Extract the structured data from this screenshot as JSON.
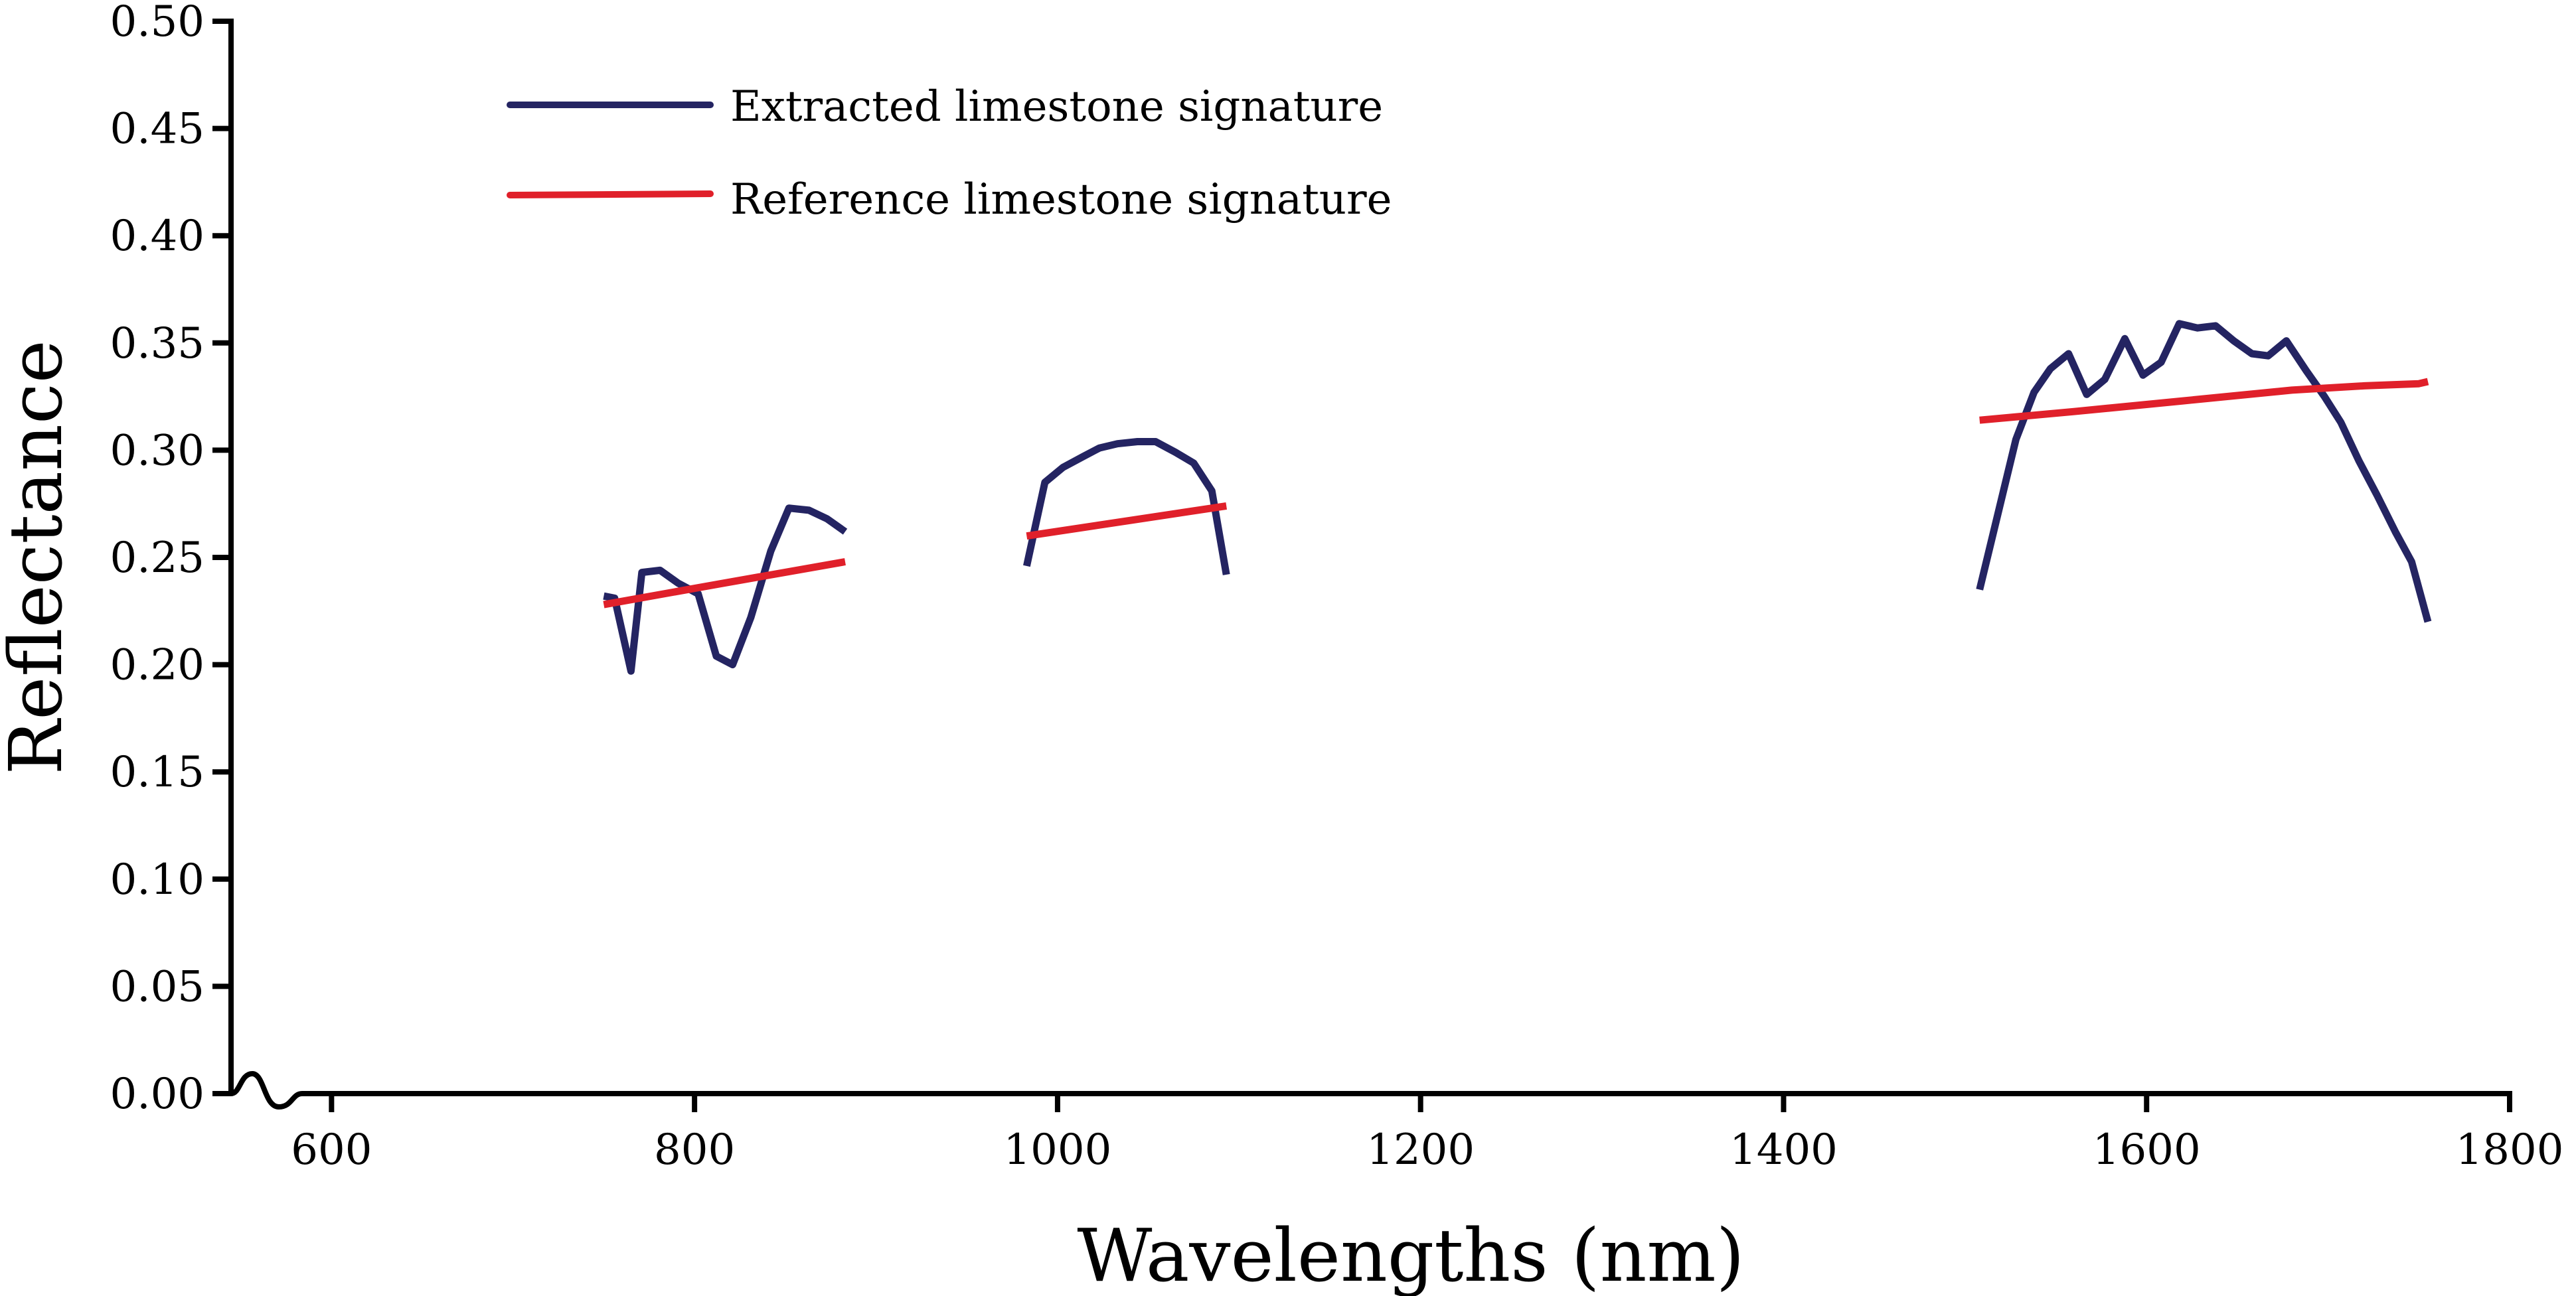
{
  "chart_data": {
    "type": "line",
    "title": "",
    "xlabel": "Wavelengths (nm)",
    "ylabel": "Reflectance",
    "xlim": [
      560,
      1800
    ],
    "ylim": [
      0.0,
      0.5
    ],
    "x_ticks": [
      600,
      800,
      1000,
      1200,
      1400,
      1600,
      1800
    ],
    "x_tick_labels": [
      "600",
      "800",
      "1000",
      "1200",
      "1400",
      "1600",
      "1800"
    ],
    "y_ticks": [
      0.0,
      0.05,
      0.1,
      0.15,
      0.2,
      0.25,
      0.3,
      0.35,
      0.4,
      0.45,
      0.5
    ],
    "y_tick_labels": [
      "0.00",
      "0.05",
      "0.10",
      "0.15",
      "0.20",
      "0.25",
      "0.30",
      "0.35",
      "0.40",
      "0.45",
      "0.50"
    ],
    "grid": false,
    "legend_position": "top-left",
    "series": [
      {
        "name": "Extracted limestone signature",
        "color": "#242462",
        "segments": [
          [
            [
              750,
              0.232
            ],
            [
              756,
              0.231
            ],
            [
              765,
              0.197
            ],
            [
              771,
              0.243
            ],
            [
              781,
              0.244
            ],
            [
              791,
              0.238
            ],
            [
              802,
              0.233
            ],
            [
              812,
              0.204
            ],
            [
              821,
              0.2
            ],
            [
              831,
              0.222
            ],
            [
              842,
              0.253
            ],
            [
              852,
              0.273
            ],
            [
              863,
              0.272
            ],
            [
              873,
              0.268
            ],
            [
              883,
              0.262
            ]
          ],
          [
            [
              983,
              0.246
            ],
            [
              993,
              0.285
            ],
            [
              1003,
              0.292
            ],
            [
              1014,
              0.297
            ],
            [
              1023,
              0.301
            ],
            [
              1033,
              0.303
            ],
            [
              1044,
              0.304
            ],
            [
              1054,
              0.304
            ],
            [
              1065,
              0.299
            ],
            [
              1075,
              0.294
            ],
            [
              1085,
              0.281
            ],
            [
              1093,
              0.242
            ]
          ],
          [
            [
              1508,
              0.235
            ],
            [
              1528,
              0.305
            ],
            [
              1538,
              0.327
            ],
            [
              1547,
              0.338
            ],
            [
              1557,
              0.345
            ],
            [
              1567,
              0.326
            ],
            [
              1577,
              0.333
            ],
            [
              1588,
              0.352
            ],
            [
              1598,
              0.335
            ],
            [
              1608,
              0.341
            ],
            [
              1618,
              0.359
            ],
            [
              1628,
              0.357
            ],
            [
              1638,
              0.358
            ],
            [
              1648,
              0.351
            ],
            [
              1658,
              0.345
            ],
            [
              1667,
              0.344
            ],
            [
              1677,
              0.351
            ],
            [
              1688,
              0.337
            ],
            [
              1698,
              0.325
            ],
            [
              1707,
              0.313
            ],
            [
              1717,
              0.295
            ],
            [
              1727,
              0.279
            ],
            [
              1737,
              0.262
            ],
            [
              1746,
              0.248
            ],
            [
              1755,
              0.22
            ]
          ]
        ]
      },
      {
        "name": "Reference limestone signature",
        "color": "#e0202a",
        "segments": [
          [
            [
              750,
              0.228
            ],
            [
              816,
              0.238
            ],
            [
              883,
              0.248
            ]
          ],
          [
            [
              983,
              0.26
            ],
            [
              1038,
              0.267
            ],
            [
              1093,
              0.274
            ]
          ],
          [
            [
              1508,
              0.314
            ],
            [
              1560,
              0.318
            ],
            [
              1620,
              0.323
            ],
            [
              1680,
              0.328
            ],
            [
              1720,
              0.33
            ],
            [
              1750,
              0.331
            ],
            [
              1755,
              0.332
            ]
          ]
        ]
      }
    ]
  }
}
